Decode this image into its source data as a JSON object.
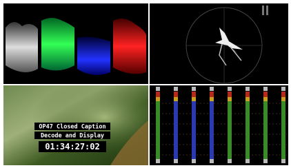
{
  "caption": {
    "lines": [
      "OP47 Closed Caption",
      "Decode and Display"
    ],
    "timecode": "01:34:27:02"
  }
}
